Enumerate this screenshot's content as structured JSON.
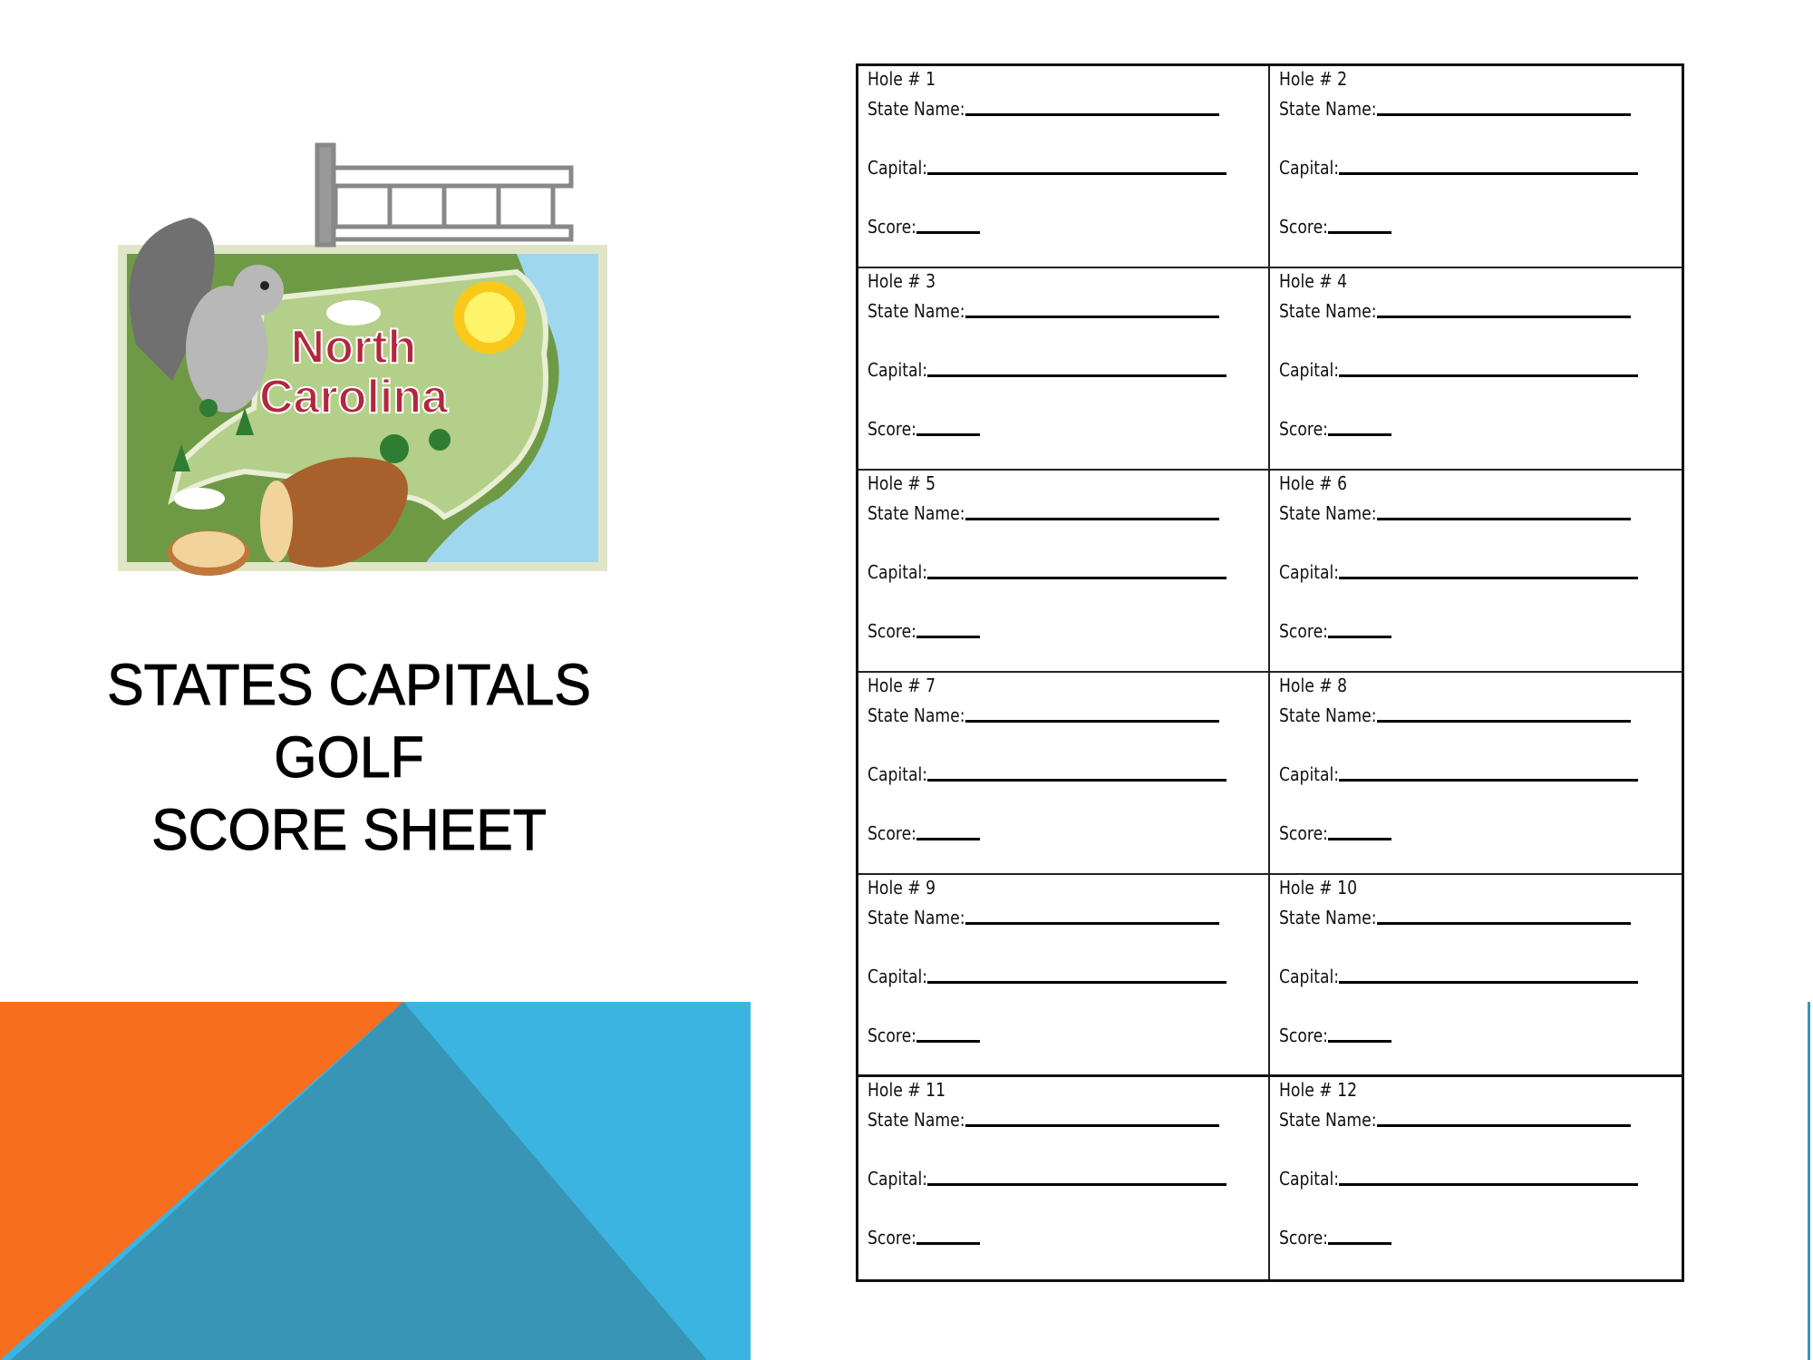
{
  "title": {
    "lines": [
      "STATES CAPITALS",
      "GOLF",
      "SCORE SHEET"
    ]
  },
  "illustration": {
    "logo_text": [
      "North",
      "Carolina"
    ]
  },
  "sheet": {
    "fields": {
      "state": "State Name:",
      "capital": "Capital:",
      "score": "Score:"
    },
    "holes": [
      "Hole # 1",
      "Hole # 2",
      "Hole # 3",
      "Hole # 4",
      "Hole # 5",
      "Hole # 6",
      "Hole # 7",
      "Hole # 8",
      "Hole # 9",
      "Hole # 10",
      "Hole # 11",
      "Hole # 12"
    ]
  },
  "colors": {
    "orange": "#f76e1e",
    "teal": "#3895b5",
    "sky": "#3bb4e1",
    "logo_red": "#b3263e"
  }
}
